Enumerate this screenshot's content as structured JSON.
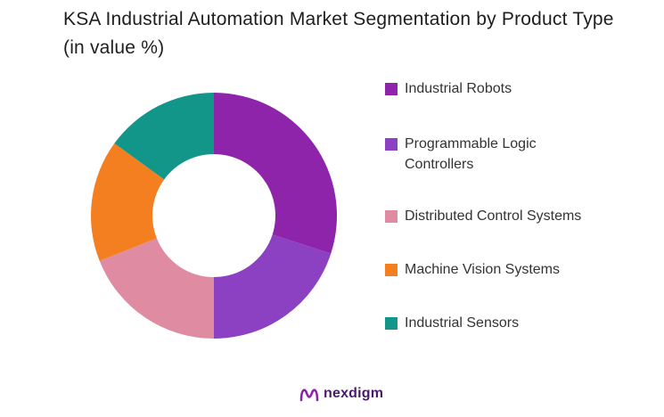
{
  "title": "KSA Industrial Automation Market Segmentation by Product Type (in value %)",
  "brand": {
    "name": "nexdigm",
    "logo_icon": "nexdigm-logo-icon"
  },
  "colors": {
    "industrial_robots": "#8e24aa",
    "plc": "#8b41c1",
    "dcs": "#df8ba2",
    "machine_vision": "#f37f21",
    "sensors": "#13968a"
  },
  "chart_data": {
    "type": "pie",
    "donut": true,
    "title": "KSA Industrial Automation Market Segmentation by Product Type (in value %)",
    "categories": [
      "Industrial Robots",
      "Programmable Logic Controllers",
      "Distributed Control Systems",
      "Machine Vision Systems",
      "Industrial Sensors"
    ],
    "values": [
      30,
      20,
      19,
      16,
      15
    ],
    "colors": [
      "#8e24aa",
      "#8b41c1",
      "#df8ba2",
      "#f37f21",
      "#13968a"
    ],
    "legend_position": "right"
  },
  "legend": [
    {
      "label": "Industrial Robots",
      "color": "#8e24aa"
    },
    {
      "label": "Programmable Logic Controllers",
      "color": "#8b41c1"
    },
    {
      "label": "Distributed Control Systems",
      "color": "#df8ba2"
    },
    {
      "label": "Machine Vision Systems",
      "color": "#f37f21"
    },
    {
      "label": "Industrial Sensors",
      "color": "#13968a"
    }
  ]
}
